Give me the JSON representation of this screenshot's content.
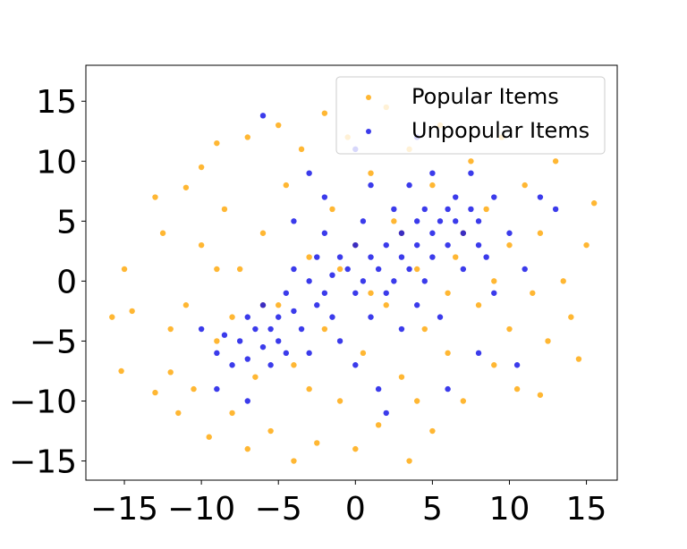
{
  "chart_data": {
    "type": "scatter",
    "xlim": [
      -17.5,
      17.0
    ],
    "ylim": [
      -16.6,
      18.0
    ],
    "xticks": [
      {
        "value": -15,
        "label": "−15"
      },
      {
        "value": -10,
        "label": "−10"
      },
      {
        "value": -5,
        "label": "−5"
      },
      0,
      5,
      10,
      15
    ],
    "yticks": [
      {
        "value": -15,
        "label": "−15"
      },
      {
        "value": -10,
        "label": "−10"
      },
      {
        "value": -5,
        "label": "−5"
      },
      0,
      5,
      10,
      15
    ],
    "legend": "upper right",
    "series": [
      {
        "name": "Popular Items",
        "color": "#ffa500",
        "x": [
          -15.8,
          -15.2,
          -15,
          -14.5,
          -13,
          -13,
          -12.5,
          -12,
          -11.5,
          -11,
          -11,
          -10.5,
          -10,
          -10,
          -9.5,
          -9,
          -9,
          -8.5,
          -8,
          -7.5,
          -7,
          -7,
          -6.5,
          -6,
          -5.5,
          -5,
          -5,
          -4.5,
          -4,
          -4,
          -3.5,
          -3,
          -2.5,
          -2,
          -2,
          -1.5,
          -1,
          -0.5,
          0,
          0,
          0.5,
          1,
          1.5,
          2,
          2,
          2.5,
          3,
          3.5,
          3.5,
          4,
          4.5,
          5,
          5,
          5.5,
          6,
          6.5,
          7,
          7.5,
          8,
          8.5,
          9,
          9.5,
          10,
          10,
          10.5,
          11,
          11.5,
          12,
          12,
          12.5,
          13,
          13.5,
          14,
          14.5,
          15,
          15.5,
          -12,
          -8,
          -3,
          1,
          6,
          9,
          -6,
          3,
          -9,
          4,
          -1,
          7
        ],
        "y": [
          -3,
          -7.5,
          1,
          -2.5,
          7,
          -9.3,
          4,
          -7.6,
          -11,
          7.8,
          -2,
          -9,
          9.5,
          3,
          -13,
          11.5,
          -5,
          6,
          -11,
          1,
          -14,
          12,
          -8,
          4,
          -12.5,
          13,
          -2,
          8,
          -15,
          -7,
          11,
          2,
          -13.5,
          14,
          -4,
          6,
          -10,
          12,
          -14,
          3,
          -6,
          9,
          -12,
          14.5,
          -2,
          5,
          -8,
          -15,
          11,
          1,
          -4,
          -12.5,
          8,
          13,
          -6,
          2,
          -10,
          10,
          -2,
          6,
          -7,
          12,
          -4,
          3,
          -9,
          8,
          -1,
          4,
          -9.5,
          -5,
          10,
          0,
          -3,
          -6.5,
          3,
          6.5,
          -4,
          -3,
          -9,
          -1,
          -1,
          0,
          -2,
          4,
          1,
          -10,
          1,
          4
        ]
      },
      {
        "name": "Unpopular Items",
        "color": "#0a0ae6",
        "x": [
          -9,
          -8.5,
          -8,
          -7.5,
          -7,
          -7,
          -6.5,
          -6,
          -6,
          -5.5,
          -5.5,
          -5,
          -5,
          -4.5,
          -4.5,
          -4,
          -4,
          -3.5,
          -3,
          -3,
          -2.5,
          -2.5,
          -2,
          -2,
          -1.5,
          -1.5,
          -1,
          -1,
          -0.5,
          0,
          0,
          0,
          0.5,
          0.5,
          1,
          1,
          1.5,
          1.5,
          2,
          2,
          2.5,
          2.5,
          3,
          3,
          3,
          3.5,
          3.5,
          4,
          4,
          4,
          4.5,
          4.5,
          5,
          5,
          5,
          5.5,
          5.5,
          6,
          6,
          6.5,
          6.5,
          7,
          7,
          7.5,
          7.5,
          8,
          8,
          8.5,
          9,
          9,
          10,
          10.5,
          11,
          12,
          13,
          -6,
          -9,
          -10,
          -3,
          0,
          -7,
          2,
          6,
          8,
          -2,
          4,
          -4,
          1
        ],
        "y": [
          -6,
          -4.5,
          -7,
          -5,
          -3,
          -6.5,
          -4,
          -5.5,
          -2,
          -7,
          -4,
          -3,
          -5,
          -1,
          -6,
          -2.5,
          1,
          -4,
          0,
          -6,
          2,
          -2,
          -1,
          4,
          0.5,
          -3,
          2,
          -5,
          1,
          -1,
          3,
          -7,
          0,
          5,
          2,
          -3,
          1,
          -9,
          3,
          -1,
          6,
          0,
          2,
          4,
          -4,
          1,
          8,
          5,
          3,
          -2,
          6,
          0,
          4,
          2,
          9,
          5,
          -3,
          6,
          3,
          5,
          7,
          4,
          1,
          6,
          9,
          5,
          3,
          2,
          7,
          -1,
          4,
          -7,
          1,
          7,
          6,
          13.8,
          -9,
          -4,
          9,
          11,
          -10,
          -11,
          -9,
          -6,
          7,
          12,
          5,
          8
        ]
      }
    ]
  }
}
